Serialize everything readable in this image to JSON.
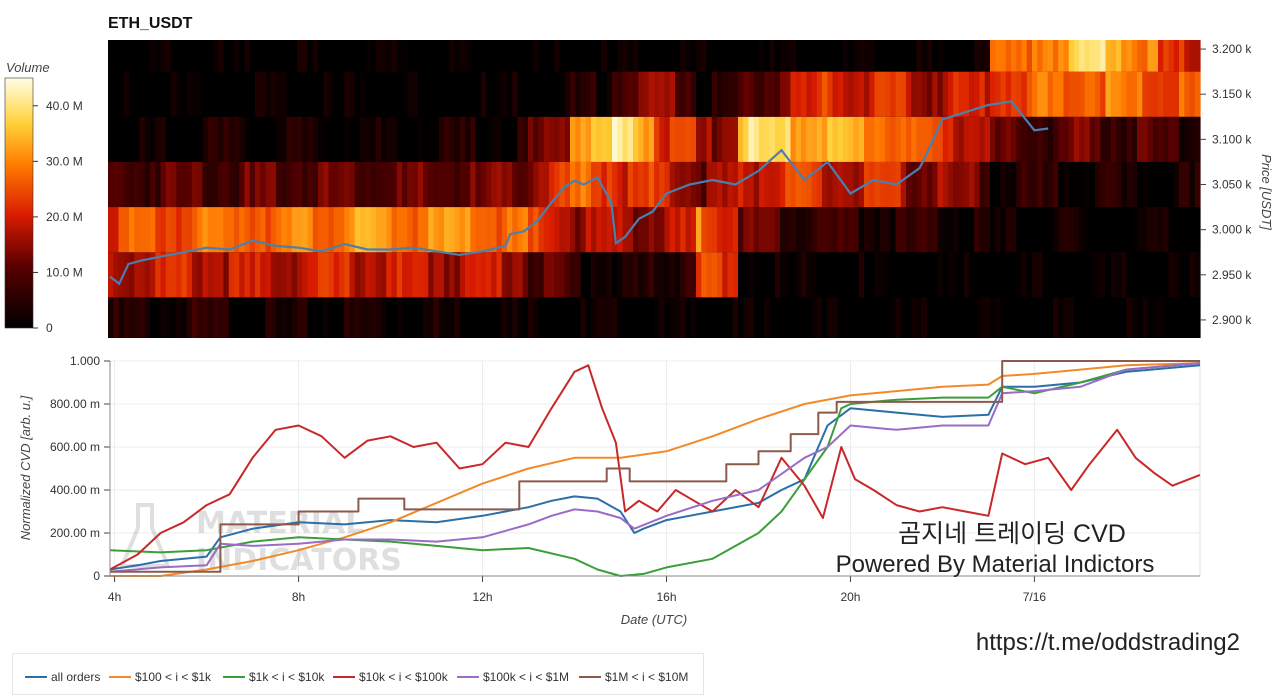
{
  "chart_data": [
    {
      "type": "heatmap",
      "title": "ETH_USDT",
      "ylabel": "Price [USDT]",
      "ylim": [
        2880,
        3210
      ],
      "y_ticks": [
        "2.900 k",
        "2.950 k",
        "3.000 k",
        "3.050 k",
        "3.100 k",
        "3.150 k",
        "3.200 k"
      ],
      "price_bands": [
        {
          "low": 2880,
          "high": 2925,
          "intensity": [
            0.12,
            0.1,
            0.14,
            0.08,
            0.06,
            0.1,
            0.12,
            0.1,
            0.08,
            0.06,
            0.05,
            0.04,
            0.03,
            0.02,
            0.02,
            0.02,
            0.02,
            0.02,
            0.02,
            0.02,
            0.02,
            0.02,
            0.02,
            0.02,
            0.02,
            0.02
          ]
        },
        {
          "low": 2925,
          "high": 2975,
          "intensity": [
            0.45,
            0.5,
            0.48,
            0.45,
            0.47,
            0.5,
            0.48,
            0.46,
            0.45,
            0.48,
            0.3,
            0.15,
            0.12,
            0.1,
            0.6,
            0.1,
            0.05,
            0.04,
            0.03,
            0.03,
            0.03,
            0.02,
            0.02,
            0.02,
            0.02,
            0.02
          ]
        },
        {
          "low": 2975,
          "high": 3025,
          "intensity": [
            0.6,
            0.62,
            0.65,
            0.7,
            0.68,
            0.72,
            0.75,
            0.7,
            0.72,
            0.68,
            0.55,
            0.4,
            0.45,
            0.35,
            0.7,
            0.3,
            0.25,
            0.2,
            0.18,
            0.15,
            0.12,
            0.05,
            0.05,
            0.05,
            0.04,
            0.04
          ]
        },
        {
          "low": 3025,
          "high": 3075,
          "intensity": [
            0.25,
            0.28,
            0.3,
            0.28,
            0.3,
            0.32,
            0.3,
            0.28,
            0.3,
            0.3,
            0.45,
            0.65,
            0.55,
            0.5,
            0.35,
            0.5,
            0.55,
            0.45,
            0.5,
            0.4,
            0.35,
            0.15,
            0.15,
            0.12,
            0.1,
            0.1
          ]
        },
        {
          "low": 3075,
          "high": 3125,
          "intensity": [
            0.02,
            0.08,
            0.1,
            0.08,
            0.1,
            0.1,
            0.08,
            0.08,
            0.1,
            0.12,
            0.25,
            0.8,
            0.95,
            0.6,
            0.3,
            0.9,
            0.85,
            0.8,
            0.75,
            0.6,
            0.55,
            0.25,
            0.25,
            0.3,
            0.25,
            0.2
          ]
        },
        {
          "low": 3125,
          "high": 3175,
          "intensity": [
            0.02,
            0.02,
            0.02,
            0.02,
            0.03,
            0.03,
            0.03,
            0.03,
            0.04,
            0.04,
            0.05,
            0.1,
            0.3,
            0.4,
            0.1,
            0.25,
            0.45,
            0.55,
            0.5,
            0.45,
            0.45,
            0.6,
            0.65,
            0.7,
            0.68,
            0.6
          ]
        },
        {
          "low": 3175,
          "high": 3210,
          "intensity": [
            0.02,
            0.02,
            0.02,
            0.02,
            0.02,
            0.02,
            0.02,
            0.02,
            0.02,
            0.02,
            0.02,
            0.02,
            0.02,
            0.02,
            0.02,
            0.02,
            0.02,
            0.02,
            0.02,
            0.02,
            0.02,
            0.6,
            0.75,
            0.9,
            0.85,
            0.5
          ]
        }
      ],
      "price_line": {
        "x": [
          3.9,
          4.1,
          4.3,
          4.6,
          5.0,
          5.5,
          6.0,
          6.5,
          7.0,
          7.5,
          8.0,
          8.5,
          9.0,
          9.5,
          10.0,
          10.5,
          11.0,
          11.5,
          12.0,
          12.5,
          12.6,
          12.9,
          13.2,
          13.5,
          13.8,
          14.0,
          14.2,
          14.5,
          14.8,
          14.9,
          15.1,
          15.4,
          15.7,
          16.0,
          16.5,
          17.0,
          17.5,
          18.0,
          18.5,
          19.0,
          19.5,
          20.0,
          20.5,
          21.0,
          21.5,
          21.6,
          22.0,
          22.5,
          23.0,
          23.5,
          24.0,
          24.3
        ],
        "y": [
          2948,
          2940,
          2962,
          2966,
          2970,
          2975,
          2980,
          2978,
          2988,
          2982,
          2980,
          2976,
          2984,
          2978,
          2978,
          2980,
          2976,
          2972,
          2976,
          2982,
          2995,
          2998,
          3010,
          3030,
          3048,
          3054,
          3050,
          3058,
          3030,
          2985,
          2992,
          3012,
          3020,
          3040,
          3050,
          3055,
          3050,
          3065,
          3088,
          3055,
          3075,
          3040,
          3055,
          3050,
          3068,
          3078,
          3122,
          3130,
          3138,
          3142,
          3110,
          3112
        ]
      },
      "colorbar": {
        "label": "Volume",
        "ticks": [
          "0",
          "10.0 M",
          "20.0 M",
          "30.0 M",
          "40.0 M"
        ],
        "max": 45
      },
      "price_line_color": "#4a7fb0"
    },
    {
      "type": "line",
      "xlabel": "Date (UTC)",
      "ylabel": "Normalized CVD [arb. u.]",
      "x_ticks": [
        {
          "value": 4,
          "label": "4h"
        },
        {
          "value": 8,
          "label": "8h"
        },
        {
          "value": 12,
          "label": "12h"
        },
        {
          "value": 16,
          "label": "16h"
        },
        {
          "value": 20,
          "label": "20h"
        },
        {
          "value": 24,
          "label": "7/16"
        }
      ],
      "xlim": [
        3.9,
        27.6
      ],
      "ylim": [
        0,
        1
      ],
      "y_ticks": [
        "0",
        "200.00 m",
        "400.00 m",
        "600.00 m",
        "800.00 m",
        "1.000"
      ],
      "grid": true,
      "legend": "bottom-left",
      "series": [
        {
          "name": "all orders",
          "color": "#2a6fa8",
          "x": [
            3.9,
            4.5,
            5.0,
            6.0,
            6.3,
            7.0,
            8.0,
            9.0,
            10.0,
            11.0,
            12.0,
            12.5,
            13.0,
            13.5,
            14.0,
            14.5,
            15.0,
            15.3,
            15.5,
            16.0,
            16.5,
            17.0,
            18.0,
            18.5,
            19.0,
            19.5,
            20.0,
            21.0,
            22.0,
            23.0,
            23.3,
            24.0,
            25.0,
            26.0,
            27.6
          ],
          "y": [
            0.03,
            0.05,
            0.07,
            0.09,
            0.18,
            0.22,
            0.25,
            0.24,
            0.26,
            0.25,
            0.28,
            0.3,
            0.32,
            0.35,
            0.37,
            0.36,
            0.3,
            0.2,
            0.22,
            0.26,
            0.28,
            0.3,
            0.34,
            0.4,
            0.45,
            0.7,
            0.78,
            0.76,
            0.74,
            0.75,
            0.88,
            0.88,
            0.9,
            0.95,
            0.98
          ]
        },
        {
          "name": "$100 < i < $1k",
          "color": "#f28a2a",
          "x": [
            3.9,
            5.0,
            6.0,
            7.0,
            8.0,
            9.0,
            10.0,
            11.0,
            12.0,
            13.0,
            14.0,
            15.0,
            16.0,
            17.0,
            18.0,
            19.0,
            20.0,
            21.0,
            22.0,
            23.0,
            23.3,
            24.0,
            25.0,
            26.0,
            27.6
          ],
          "y": [
            0.0,
            0.0,
            0.03,
            0.07,
            0.12,
            0.18,
            0.25,
            0.34,
            0.43,
            0.5,
            0.55,
            0.55,
            0.58,
            0.65,
            0.73,
            0.8,
            0.84,
            0.86,
            0.88,
            0.89,
            0.93,
            0.94,
            0.96,
            0.98,
            0.99
          ]
        },
        {
          "name": "$1k < i < $10k",
          "color": "#3b9e3b",
          "x": [
            3.9,
            5.0,
            6.0,
            7.0,
            8.0,
            9.0,
            10.0,
            11.0,
            12.0,
            13.0,
            14.0,
            14.5,
            15.0,
            15.5,
            16.0,
            17.0,
            18.0,
            18.5,
            19.0,
            19.5,
            19.8,
            20.0,
            21.0,
            22.0,
            23.0,
            23.3,
            24.0,
            25.0,
            26.0,
            27.6
          ],
          "y": [
            0.12,
            0.11,
            0.12,
            0.16,
            0.18,
            0.17,
            0.16,
            0.14,
            0.12,
            0.13,
            0.08,
            0.03,
            0.0,
            0.01,
            0.04,
            0.08,
            0.2,
            0.3,
            0.45,
            0.6,
            0.78,
            0.8,
            0.82,
            0.83,
            0.83,
            0.88,
            0.85,
            0.9,
            0.96,
            0.99
          ]
        },
        {
          "name": "$10k < i < $100k",
          "color": "#c82828",
          "x": [
            3.9,
            4.5,
            5.0,
            5.5,
            6.0,
            6.5,
            7.0,
            7.5,
            8.0,
            8.5,
            9.0,
            9.5,
            10.0,
            10.5,
            11.0,
            11.5,
            12.0,
            12.5,
            13.0,
            13.5,
            14.0,
            14.3,
            14.6,
            14.9,
            15.1,
            15.4,
            15.8,
            16.2,
            16.6,
            17.0,
            17.5,
            18.0,
            18.5,
            19.0,
            19.4,
            19.8,
            20.1,
            20.5,
            21.0,
            21.5,
            22.0,
            22.5,
            23.0,
            23.3,
            23.8,
            24.3,
            24.8,
            25.2,
            25.8,
            26.2,
            26.6,
            27.0,
            27.6
          ],
          "y": [
            0.03,
            0.1,
            0.2,
            0.25,
            0.33,
            0.38,
            0.55,
            0.68,
            0.7,
            0.65,
            0.55,
            0.63,
            0.65,
            0.6,
            0.62,
            0.5,
            0.52,
            0.62,
            0.6,
            0.78,
            0.95,
            0.98,
            0.78,
            0.62,
            0.3,
            0.35,
            0.3,
            0.4,
            0.35,
            0.3,
            0.4,
            0.32,
            0.55,
            0.42,
            0.27,
            0.6,
            0.45,
            0.4,
            0.33,
            0.3,
            0.32,
            0.3,
            0.28,
            0.57,
            0.52,
            0.55,
            0.4,
            0.52,
            0.68,
            0.55,
            0.48,
            0.42,
            0.47
          ]
        },
        {
          "name": "$100k < i < $1M",
          "color": "#9a6cc5",
          "x": [
            3.9,
            5.0,
            6.0,
            6.3,
            7.0,
            8.0,
            9.0,
            10.0,
            11.0,
            12.0,
            13.0,
            13.5,
            14.0,
            14.5,
            15.0,
            15.3,
            16.0,
            17.0,
            18.0,
            19.0,
            19.5,
            20.0,
            21.0,
            22.0,
            23.0,
            23.3,
            24.0,
            25.0,
            26.0,
            27.6
          ],
          "y": [
            0.02,
            0.04,
            0.05,
            0.15,
            0.14,
            0.15,
            0.17,
            0.17,
            0.16,
            0.18,
            0.24,
            0.28,
            0.31,
            0.3,
            0.27,
            0.22,
            0.28,
            0.35,
            0.4,
            0.55,
            0.6,
            0.7,
            0.68,
            0.7,
            0.7,
            0.85,
            0.86,
            0.88,
            0.96,
            0.99
          ]
        },
        {
          "name": "$1M < i < $10M",
          "color": "#8b5a4a",
          "x": [
            3.9,
            6.3,
            6.3,
            8.0,
            8.0,
            9.3,
            9.3,
            10.3,
            10.3,
            12.8,
            12.8,
            14.7,
            14.7,
            15.2,
            15.2,
            17.3,
            17.3,
            18.0,
            18.0,
            18.7,
            18.7,
            19.3,
            19.3,
            19.7,
            19.7,
            23.3,
            23.3,
            27.6
          ],
          "y": [
            0.02,
            0.02,
            0.24,
            0.24,
            0.3,
            0.3,
            0.36,
            0.36,
            0.31,
            0.31,
            0.44,
            0.44,
            0.5,
            0.5,
            0.44,
            0.44,
            0.52,
            0.52,
            0.58,
            0.58,
            0.66,
            0.66,
            0.76,
            0.76,
            0.81,
            0.81,
            1.0,
            1.0
          ]
        }
      ]
    }
  ],
  "legend_labels": [
    "all orders",
    "$100 < i < $1k",
    "$1k < i < $10k",
    "$10k < i < $100k",
    "$100k < i < $1M",
    "$1M < i < $10M"
  ],
  "watermark": {
    "overlay_line1": "곰지네 트레이딩 CVD",
    "overlay_line2": "Powered By Material Indictors",
    "url": "https://t.me/oddstrading2",
    "logo_text_1": "MATERIAL",
    "logo_text_2": "INDICATORS"
  }
}
